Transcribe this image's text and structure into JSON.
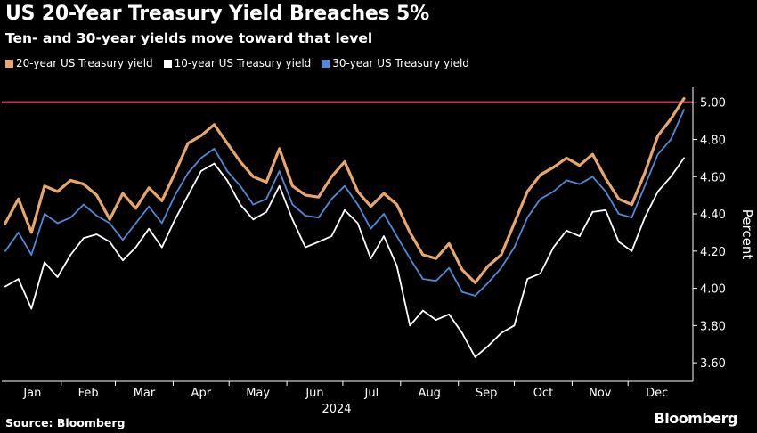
{
  "header": {
    "title": "US 20-Year Treasury Yield Breaches 5%",
    "subtitle": "Ten- and 30-year yields move toward that level"
  },
  "footer": {
    "source": "Source: Bloomberg",
    "brand": "Bloomberg"
  },
  "chart_data": {
    "type": "line",
    "title": "US 20-Year Treasury Yield Breaches 5%",
    "subtitle": "Ten- and 30-year yields move toward that level",
    "xlabel": "2024",
    "ylabel": "Percent",
    "x": [
      "2024-01-02",
      "2024-01-09",
      "2024-01-16",
      "2024-01-23",
      "2024-01-30",
      "2024-02-06",
      "2024-02-13",
      "2024-02-20",
      "2024-02-27",
      "2024-03-05",
      "2024-03-12",
      "2024-03-19",
      "2024-03-26",
      "2024-04-02",
      "2024-04-09",
      "2024-04-16",
      "2024-04-23",
      "2024-04-30",
      "2024-05-07",
      "2024-05-14",
      "2024-05-21",
      "2024-05-28",
      "2024-06-04",
      "2024-06-11",
      "2024-06-18",
      "2024-06-25",
      "2024-07-02",
      "2024-07-09",
      "2024-07-16",
      "2024-07-23",
      "2024-07-30",
      "2024-08-06",
      "2024-08-13",
      "2024-08-20",
      "2024-08-27",
      "2024-09-03",
      "2024-09-10",
      "2024-09-17",
      "2024-09-24",
      "2024-10-01",
      "2024-10-08",
      "2024-10-15",
      "2024-10-22",
      "2024-10-29",
      "2024-11-05",
      "2024-11-12",
      "2024-11-19",
      "2024-11-26",
      "2024-12-03",
      "2024-12-10",
      "2024-12-17",
      "2024-12-24",
      "2024-12-31"
    ],
    "x_ticks": [
      "Jan",
      "Feb",
      "Mar",
      "Apr",
      "May",
      "Jun",
      "Jul",
      "Aug",
      "Sep",
      "Oct",
      "Nov",
      "Dec"
    ],
    "y_ticks": [
      "5.00",
      "4.80",
      "4.60",
      "4.40",
      "4.20",
      "4.00",
      "3.80",
      "3.60"
    ],
    "ylim": [
      3.5,
      5.08
    ],
    "grid": false,
    "legend_position": "top-left",
    "reference_line": {
      "y": 5.0,
      "color": "#e0457b"
    },
    "series": [
      {
        "name": "20-year US Treasury yield",
        "color": "#e8a66a",
        "values": [
          4.35,
          4.48,
          4.3,
          4.55,
          4.52,
          4.58,
          4.56,
          4.5,
          4.37,
          4.51,
          4.43,
          4.54,
          4.47,
          4.62,
          4.78,
          4.82,
          4.88,
          4.78,
          4.68,
          4.6,
          4.57,
          4.75,
          4.55,
          4.5,
          4.49,
          4.6,
          4.68,
          4.52,
          4.44,
          4.51,
          4.45,
          4.3,
          4.18,
          4.16,
          4.24,
          4.1,
          4.03,
          4.12,
          4.18,
          4.35,
          4.52,
          4.61,
          4.65,
          4.7,
          4.66,
          4.72,
          4.59,
          4.48,
          4.45,
          4.62,
          4.82,
          4.91,
          5.02
        ]
      },
      {
        "name": "10-year US Treasury yield",
        "color": "#ffffff",
        "values": [
          4.01,
          4.05,
          3.89,
          4.14,
          4.06,
          4.18,
          4.27,
          4.29,
          4.25,
          4.15,
          4.22,
          4.32,
          4.22,
          4.37,
          4.5,
          4.63,
          4.67,
          4.58,
          4.45,
          4.37,
          4.41,
          4.55,
          4.37,
          4.22,
          4.25,
          4.28,
          4.42,
          4.35,
          4.16,
          4.28,
          4.12,
          3.8,
          3.88,
          3.83,
          3.86,
          3.76,
          3.63,
          3.69,
          3.76,
          3.8,
          4.05,
          4.08,
          4.22,
          4.31,
          4.28,
          4.41,
          4.42,
          4.25,
          4.2,
          4.38,
          4.52,
          4.6,
          4.7
        ]
      },
      {
        "name": "30-year US Treasury yield",
        "color": "#4f8ad8",
        "values": [
          4.2,
          4.3,
          4.18,
          4.4,
          4.35,
          4.38,
          4.45,
          4.39,
          4.35,
          4.26,
          4.35,
          4.44,
          4.35,
          4.5,
          4.62,
          4.7,
          4.75,
          4.63,
          4.55,
          4.45,
          4.48,
          4.63,
          4.45,
          4.39,
          4.38,
          4.48,
          4.55,
          4.45,
          4.32,
          4.4,
          4.28,
          4.16,
          4.05,
          4.04,
          4.11,
          3.98,
          3.96,
          4.03,
          4.11,
          4.22,
          4.38,
          4.48,
          4.52,
          4.58,
          4.56,
          4.6,
          4.52,
          4.4,
          4.38,
          4.55,
          4.72,
          4.8,
          4.96
        ]
      }
    ]
  }
}
